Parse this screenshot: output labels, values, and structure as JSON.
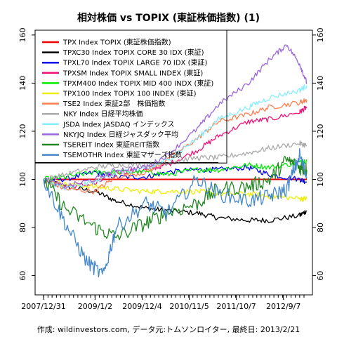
{
  "chart_data": {
    "type": "line",
    "title": "相対株価 vs TOPIX (東証株価指数) (1)",
    "xlabel": "",
    "ylabel": "",
    "ylim": [
      52,
      162
    ],
    "yticks": [
      60,
      80,
      100,
      120,
      140,
      160
    ],
    "xlim": [
      "2007-12-31",
      "2013-02-21"
    ],
    "xtick_labels": [
      "2007/12/31",
      "2009/1/2",
      "2009/12/4",
      "2010/11/5",
      "2011/10/7",
      "2012/9/7"
    ],
    "xtick_dates": [
      "2007-12-31",
      "2009-01-02",
      "2009-12-04",
      "2010-11-05",
      "2011-10-07",
      "2012-09-07"
    ],
    "grid": false,
    "legend_position": "top-left",
    "reference_line": {
      "y": 107,
      "x_end": "2011-06-01"
    },
    "series": [
      {
        "name": "TPX Index TOPIX (東証株価指数)",
        "color": "#ee0000",
        "x": [
          "2007-12-31",
          "2013-02-21"
        ],
        "values": [
          100,
          100
        ]
      },
      {
        "name": "TPXC30 Index TOPIX CORE 30 IDX (東証)",
        "color": "#000000",
        "x": [
          "2007-12-31",
          "2008-06-01",
          "2009-01-01",
          "2009-06-01",
          "2010-01-01",
          "2010-06-01",
          "2011-01-01",
          "2011-06-01",
          "2012-01-01",
          "2012-06-01",
          "2013-01-01",
          "2013-02-21"
        ],
        "values": [
          100,
          97,
          95,
          91,
          88,
          87,
          86,
          84,
          83,
          83,
          85,
          87
        ]
      },
      {
        "name": "TPXL70 Index TOPIX LARGE 70 IDX (東証)",
        "color": "#0000ee",
        "x": [
          "2007-12-31",
          "2008-06-01",
          "2009-01-01",
          "2009-06-01",
          "2010-01-01",
          "2010-06-01",
          "2011-01-01",
          "2011-06-01",
          "2012-01-01",
          "2012-06-01",
          "2013-01-01",
          "2013-02-21"
        ],
        "values": [
          100,
          100,
          103,
          101,
          101,
          103,
          104,
          104,
          105,
          102,
          100,
          99
        ]
      },
      {
        "name": "TPXSM Index TOPIX SMALL INDEX (東証)",
        "color": "#ee1177",
        "x": [
          "2007-12-31",
          "2008-06-01",
          "2009-01-01",
          "2009-06-01",
          "2010-01-01",
          "2010-06-01",
          "2011-01-01",
          "2011-06-01",
          "2012-01-01",
          "2012-06-01",
          "2013-01-01",
          "2013-02-21"
        ],
        "values": [
          100,
          97,
          98,
          103,
          104,
          106,
          112,
          118,
          124,
          125,
          128,
          130
        ]
      },
      {
        "name": "TPXM400 Index TOPIX MID 400 INDX (東証)",
        "color": "#00ee00",
        "x": [
          "2007-12-31",
          "2008-06-01",
          "2009-01-01",
          "2009-06-01",
          "2010-01-01",
          "2010-06-01",
          "2011-01-01",
          "2011-06-01",
          "2012-01-01",
          "2012-06-01",
          "2013-01-01",
          "2013-02-21"
        ],
        "values": [
          100,
          101,
          103,
          103,
          103,
          102,
          104,
          104,
          106,
          105,
          107,
          108
        ]
      },
      {
        "name": "TPX100 Index TOPIX 100 INDEX (東証)",
        "color": "#eeee00",
        "x": [
          "2007-12-31",
          "2008-06-01",
          "2009-01-01",
          "2009-06-01",
          "2010-01-01",
          "2010-06-01",
          "2011-01-01",
          "2011-06-01",
          "2012-01-01",
          "2012-06-01",
          "2013-01-01",
          "2013-02-21"
        ],
        "values": [
          100,
          98,
          97,
          96,
          95,
          95,
          95,
          94,
          94,
          93,
          92,
          92
        ]
      },
      {
        "name": "TSE2 Index 東証2部　株価指数",
        "color": "#ff7f50",
        "x": [
          "2007-12-31",
          "2008-06-01",
          "2009-01-01",
          "2009-06-01",
          "2010-01-01",
          "2010-06-01",
          "2011-01-01",
          "2011-06-01",
          "2012-01-01",
          "2012-06-01",
          "2013-01-01",
          "2013-02-21"
        ],
        "values": [
          100,
          96,
          95,
          101,
          103,
          108,
          117,
          124,
          127,
          130,
          132,
          133
        ]
      },
      {
        "name": "NKY Index 日経平均株価",
        "color": "#aaaaaa",
        "x": [
          "2007-12-31",
          "2008-06-01",
          "2009-01-01",
          "2009-06-01",
          "2010-01-01",
          "2010-06-01",
          "2011-01-01",
          "2011-06-01",
          "2012-01-01",
          "2012-06-01",
          "2013-01-01",
          "2013-02-21"
        ],
        "values": [
          100,
          102,
          105,
          106,
          106,
          107,
          109,
          109,
          111,
          113,
          115,
          114
        ]
      },
      {
        "name": "JSDA Index JASDAQ インデックス",
        "color": "#88eeff",
        "x": [
          "2007-12-31",
          "2008-06-01",
          "2009-01-01",
          "2009-06-01",
          "2010-01-01",
          "2010-06-01",
          "2011-01-01",
          "2011-06-01",
          "2012-01-01",
          "2012-06-01",
          "2013-01-01",
          "2013-02-21"
        ],
        "values": [
          100,
          96,
          99,
          103,
          104,
          108,
          117,
          125,
          130,
          134,
          137,
          139
        ]
      },
      {
        "name": "NKYJQ Index 日経ジャスダック平均",
        "color": "#9966dd",
        "x": [
          "2007-12-31",
          "2008-06-01",
          "2009-01-01",
          "2009-06-01",
          "2010-01-01",
          "2010-06-01",
          "2011-01-01",
          "2011-06-01",
          "2012-01-01",
          "2012-06-01",
          "2012-10-01",
          "2013-01-01",
          "2013-02-21"
        ],
        "values": [
          100,
          97,
          100,
          104,
          105,
          110,
          121,
          131,
          140,
          150,
          156,
          148,
          140
        ]
      },
      {
        "name": "TSEREIT Index 東証REIT指数",
        "color": "#228822",
        "x": [
          "2007-12-31",
          "2008-06-01",
          "2009-01-01",
          "2009-06-01",
          "2010-01-01",
          "2010-06-01",
          "2011-01-01",
          "2011-06-01",
          "2012-01-01",
          "2012-06-01",
          "2012-10-01",
          "2013-01-01",
          "2013-02-21"
        ],
        "values": [
          100,
          88,
          80,
          76,
          82,
          86,
          90,
          96,
          97,
          100,
          108,
          105,
          104
        ]
      },
      {
        "name": "TSEMOTHR Index 東証マザーズ指数",
        "color": "#4488cc",
        "x": [
          "2007-12-31",
          "2008-06-01",
          "2008-11-01",
          "2009-03-01",
          "2009-06-01",
          "2010-01-01",
          "2010-06-01",
          "2011-01-01",
          "2011-06-01",
          "2012-01-01",
          "2012-06-01",
          "2012-10-01",
          "2013-01-01",
          "2013-02-21"
        ],
        "values": [
          100,
          82,
          66,
          60,
          80,
          90,
          86,
          100,
          94,
          91,
          93,
          96,
          110,
          101
        ]
      }
    ]
  },
  "footer": {
    "text": "作成: wildinvestors.com, データ元:トムソンロイター, 最終日: 2013/2/21"
  }
}
